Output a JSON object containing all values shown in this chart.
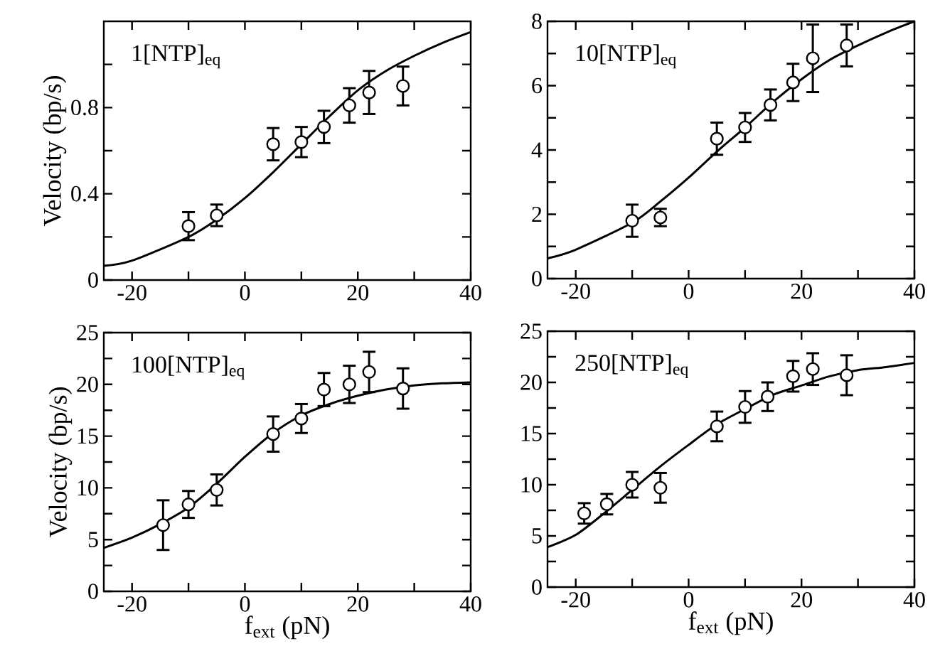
{
  "chart_data": [
    {
      "type": "scatter",
      "annotations": [
        "1[NTP]$_{eq}$"
      ],
      "ylabel": "Velocity (bp/s)",
      "xlim": [
        -25,
        40
      ],
      "ylim": [
        0,
        1.2
      ],
      "xticks": [
        -20,
        {
          "value": -10,
          "label": null
        },
        0,
        {
          "value": 10,
          "label": null
        },
        20,
        {
          "value": 30,
          "label": null
        },
        40
      ],
      "yticks": [
        0,
        {
          "value": 0.2,
          "label": null
        },
        0.4,
        {
          "value": 0.6,
          "label": null
        },
        0.8,
        {
          "value": 1.0,
          "label": null
        }
      ],
      "series": [
        {
          "marker": "circle",
          "color": "#000000",
          "x": [
            -10,
            -5,
            5,
            10,
            14,
            18.5,
            22,
            28
          ],
          "values": [
            0.25,
            0.3,
            0.63,
            0.64,
            0.71,
            0.81,
            0.87,
            0.9
          ],
          "errors": [
            0.065,
            0.05,
            0.075,
            0.07,
            0.075,
            0.08,
            0.1,
            0.09
          ]
        },
        {
          "type": "line",
          "line_style": "solid",
          "color": "#000000",
          "x": [
            -25,
            -20,
            -10,
            -5,
            0,
            5,
            10,
            15,
            20,
            25,
            30,
            35,
            40
          ],
          "values": [
            0.066,
            0.09,
            0.2,
            0.28,
            0.38,
            0.5,
            0.63,
            0.76,
            0.88,
            0.97,
            1.04,
            1.1,
            1.15
          ]
        }
      ]
    },
    {
      "type": "scatter",
      "annotations": [
        "10[NTP]$_{eq}$"
      ],
      "xlim": [
        -25,
        40
      ],
      "ylim": [
        0,
        8
      ],
      "xticks": [
        -20,
        {
          "value": -10,
          "label": null
        },
        0,
        {
          "value": 10,
          "label": null
        },
        20,
        {
          "value": 30,
          "label": null
        },
        40
      ],
      "yticks": [
        0,
        {
          "value": 1,
          "label": null
        },
        2,
        {
          "value": 3,
          "label": null
        },
        4,
        {
          "value": 5,
          "label": null
        },
        6,
        {
          "value": 7,
          "label": null
        },
        8
      ],
      "series": [
        {
          "marker": "circle",
          "color": "#000000",
          "x": [
            -10,
            -5,
            5,
            10,
            14.5,
            18.5,
            22,
            28
          ],
          "values": [
            1.8,
            1.9,
            4.35,
            4.7,
            5.4,
            6.1,
            6.85,
            7.25
          ],
          "errors": [
            0.5,
            0.27,
            0.5,
            0.45,
            0.48,
            0.58,
            1.05,
            0.65
          ]
        },
        {
          "type": "line",
          "line_style": "solid",
          "color": "#000000",
          "x": [
            -25,
            -20,
            -10,
            -5,
            0,
            5,
            10,
            15,
            20,
            25,
            30,
            35,
            40
          ],
          "values": [
            0.63,
            0.9,
            1.74,
            2.4,
            3.14,
            3.95,
            4.7,
            5.5,
            6.2,
            6.8,
            7.25,
            7.65,
            8.0
          ]
        }
      ]
    },
    {
      "type": "scatter",
      "annotations": [
        "100[NTP]$_{eq}$"
      ],
      "xlabel": "f$_{ext}$ (pN)",
      "ylabel": "Velocity (bp/s)",
      "xlim": [
        -25,
        40
      ],
      "ylim": [
        0,
        25
      ],
      "xticks": [
        -20,
        {
          "value": -10,
          "label": null
        },
        0,
        {
          "value": 10,
          "label": null
        },
        20,
        {
          "value": 30,
          "label": null
        },
        40
      ],
      "yticks": [
        0,
        {
          "value": 2.5,
          "label": null
        },
        5,
        {
          "value": 7.5,
          "label": null
        },
        10,
        {
          "value": 12.5,
          "label": null
        },
        15,
        {
          "value": 17.5,
          "label": null
        },
        20,
        {
          "value": 22.5,
          "label": null
        },
        25
      ],
      "series": [
        {
          "marker": "circle",
          "color": "#000000",
          "x": [
            -14.5,
            -10,
            -5,
            5,
            10,
            14,
            18.5,
            22,
            28
          ],
          "values": [
            6.4,
            8.4,
            9.8,
            15.2,
            16.7,
            19.5,
            20,
            21.2,
            19.6
          ],
          "errors": [
            2.4,
            1.3,
            1.5,
            1.7,
            1.4,
            1.6,
            1.8,
            1.95,
            1.95
          ]
        },
        {
          "type": "line",
          "line_style": "solid",
          "color": "#000000",
          "x": [
            -25,
            -20,
            -15,
            -10,
            -5,
            0,
            5,
            10,
            15,
            20,
            25,
            30,
            35,
            40
          ],
          "values": [
            4.2,
            5.2,
            6.5,
            8.1,
            10.4,
            13,
            15.3,
            17,
            18.1,
            18.9,
            19.5,
            19.9,
            20.1,
            20.2
          ]
        }
      ]
    },
    {
      "type": "scatter",
      "annotations": [
        "250[NTP]$_{eq}$"
      ],
      "xlabel": "f$_{ext}$ (pN)",
      "xlim": [
        -25,
        40
      ],
      "ylim": [
        0,
        25
      ],
      "xticks": [
        -20,
        {
          "value": -10,
          "label": null
        },
        0,
        {
          "value": 10,
          "label": null
        },
        20,
        {
          "value": 30,
          "label": null
        },
        40
      ],
      "yticks": [
        0,
        {
          "value": 2.5,
          "label": null
        },
        5,
        {
          "value": 7.5,
          "label": null
        },
        10,
        {
          "value": 12.5,
          "label": null
        },
        15,
        {
          "value": 17.5,
          "label": null
        },
        20,
        {
          "value": 22.5,
          "label": null
        },
        25
      ],
      "series": [
        {
          "marker": "circle",
          "color": "#000000",
          "x": [
            -18.5,
            -14.5,
            -10,
            -5,
            5,
            10,
            14,
            18.5,
            22,
            28
          ],
          "values": [
            7.2,
            8.1,
            10,
            9.7,
            15.7,
            17.6,
            18.6,
            20.6,
            21.3,
            20.7
          ],
          "errors": [
            1,
            1,
            1.25,
            1.45,
            1.45,
            1.55,
            1.4,
            1.5,
            1.55,
            1.95
          ]
        },
        {
          "type": "line",
          "line_style": "solid",
          "color": "#000000",
          "x": [
            -25,
            -20,
            -15,
            -10,
            -5,
            0,
            5,
            10,
            15,
            20,
            25,
            30,
            35,
            40
          ],
          "values": [
            3.9,
            5.1,
            7.2,
            9.5,
            11.8,
            13.9,
            15.9,
            17.4,
            18.8,
            19.7,
            20.6,
            21.2,
            21.5,
            21.9
          ]
        }
      ]
    }
  ]
}
